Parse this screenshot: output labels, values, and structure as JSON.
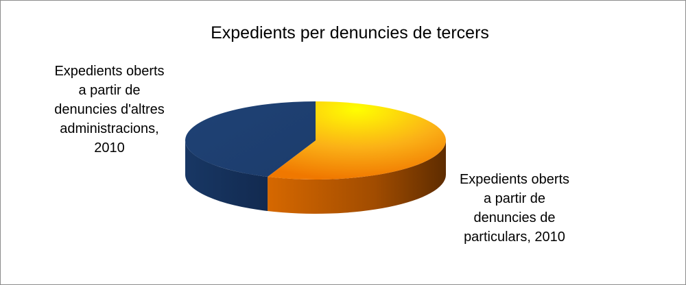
{
  "chart_data": {
    "type": "pie",
    "title": "Expedients per denuncies de tercers",
    "categories": [
      "Expedients oberts a partir de denuncies de particulars, 2010",
      "Expedients oberts a partir de denuncies d'altres administracions, 2010"
    ],
    "values": [
      56,
      44
    ],
    "colors": [
      "#f7941d",
      "#1f4275"
    ],
    "start_angle": 0,
    "direction": "clockwise",
    "three_d": true
  }
}
